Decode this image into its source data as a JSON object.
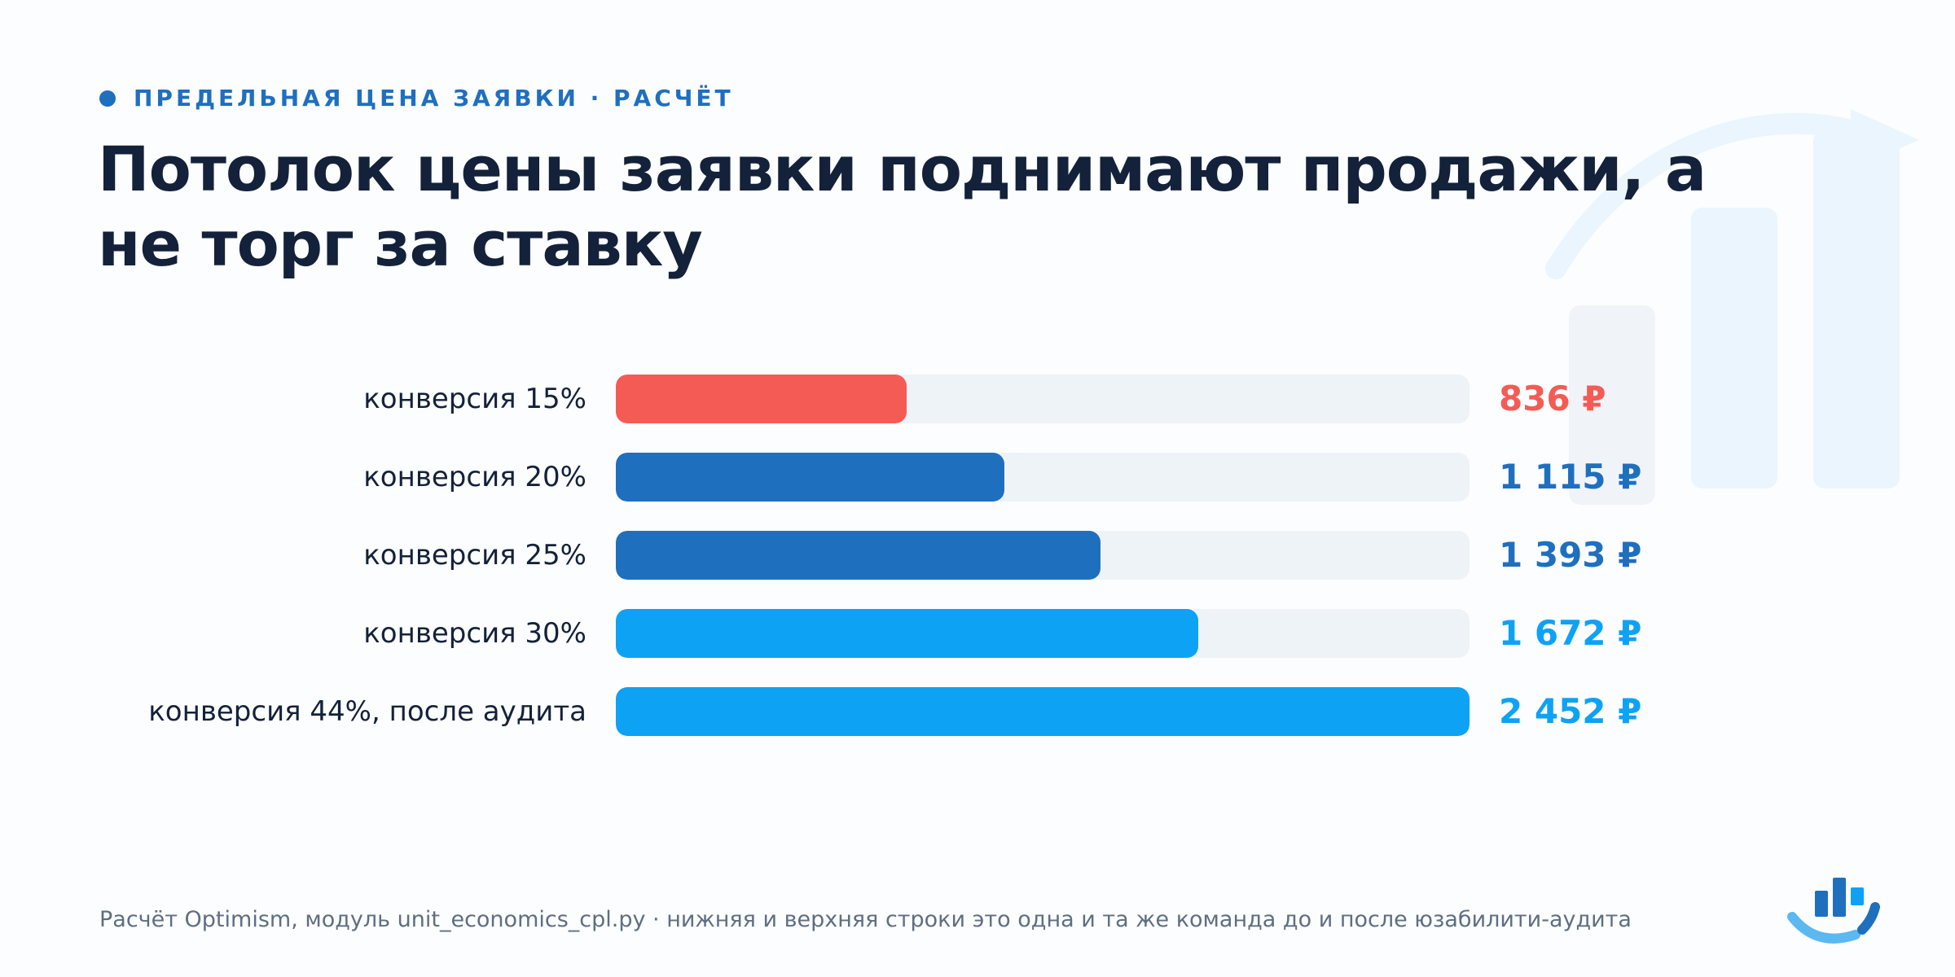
{
  "kicker": "ПРЕДЕЛЬНАЯ ЦЕНА ЗАЯВКИ · РАСЧЁТ",
  "title": "Потолок цены заявки поднимают продажи, а не торг за ставку",
  "footer": "Расчёт Optimism, модуль unit_economics_cpl.py · нижняя и верхняя строки это одна и та же команда до и после юзабилити-аудита",
  "icons": {
    "logo": "bar-chart-arc-logo-icon",
    "background": "bar-chart-arrow-decoration-icon"
  },
  "colors": {
    "accent_red": "#f55b55",
    "accent_dark_blue": "#1f6fbf",
    "accent_light_blue": "#0ea2f5",
    "track": "#eef3f8",
    "kicker": "#1f6fbf"
  },
  "chart_data": {
    "type": "bar",
    "orientation": "horizontal",
    "categories": [
      "конверсия 15%",
      "конверсия 20%",
      "конверсия 25%",
      "конверсия 30%",
      "конверсия 44%, после аудита"
    ],
    "values": [
      836,
      1115,
      1393,
      1672,
      2452
    ],
    "value_labels": [
      "836 ₽",
      "1 115 ₽",
      "1 393 ₽",
      "1 672 ₽",
      "2 452 ₽"
    ],
    "bar_colors": [
      "#f55b55",
      "#1f6fbf",
      "#1f6fbf",
      "#0ea2f5",
      "#0ea2f5"
    ],
    "xlim": [
      0,
      2452
    ],
    "grid": false,
    "legend": "none"
  }
}
